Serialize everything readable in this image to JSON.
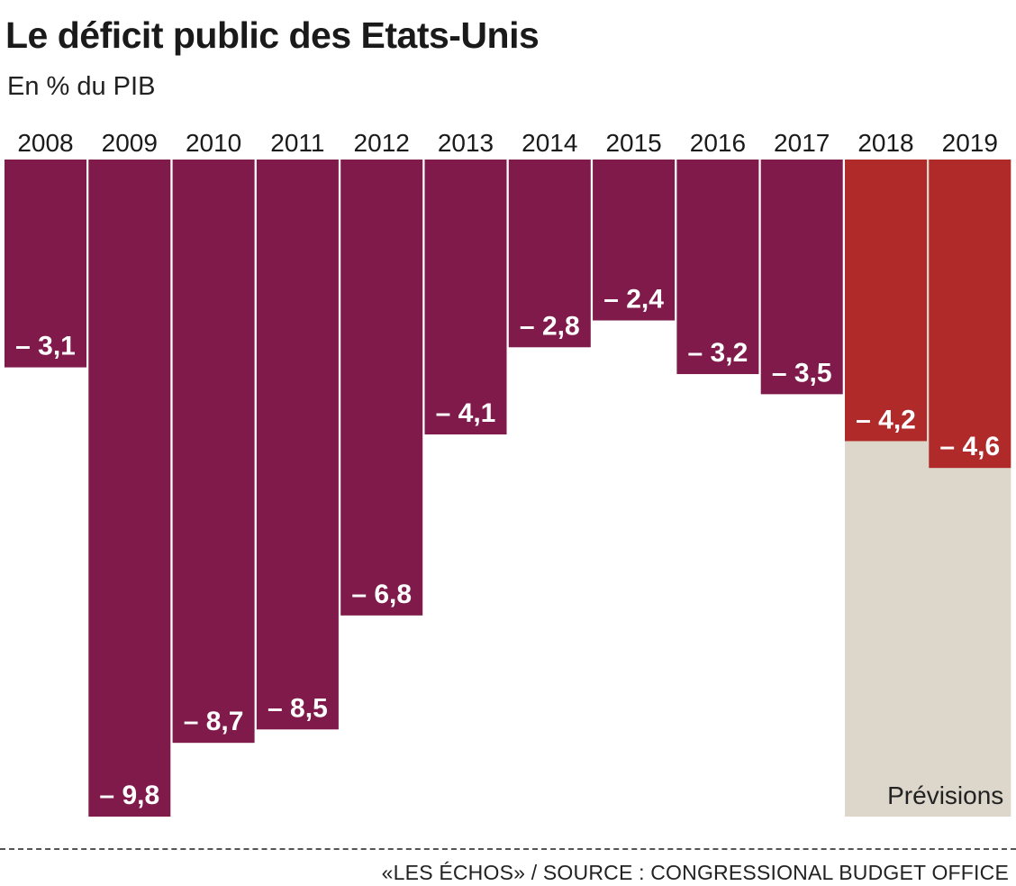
{
  "header": {
    "title": "Le déficit public des Etats-Unis",
    "subtitle": "En % du PIB"
  },
  "footer": {
    "source": "«LES ÉCHOS» / SOURCE : CONGRESSIONAL BUDGET OFFICE"
  },
  "chart_data": {
    "type": "bar",
    "categories": [
      "2008",
      "2009",
      "2010",
      "2011",
      "2012",
      "2013",
      "2014",
      "2015",
      "2016",
      "2017",
      "2018",
      "2019"
    ],
    "values": [
      -3.1,
      -9.8,
      -8.7,
      -8.5,
      -6.8,
      -4.1,
      -2.8,
      -2.4,
      -3.2,
      -3.5,
      -4.2,
      -4.6
    ],
    "labels": [
      "– 3,1",
      "– 9,8",
      "– 8,7",
      "– 8,5",
      "– 6,8",
      "– 4,1",
      "– 2,8",
      "– 2,4",
      "– 3,2",
      "– 3,5",
      "– 4,2",
      "– 4,6"
    ],
    "forecast_from": "2018",
    "forecast_label": "Prévisions",
    "ylim": [
      -9.8,
      0
    ],
    "colors": {
      "actual": "#7f1a4b",
      "forecast": "#b02a2a",
      "forecast_background": "#dcd6cb",
      "value_label": "#ffffff"
    }
  }
}
